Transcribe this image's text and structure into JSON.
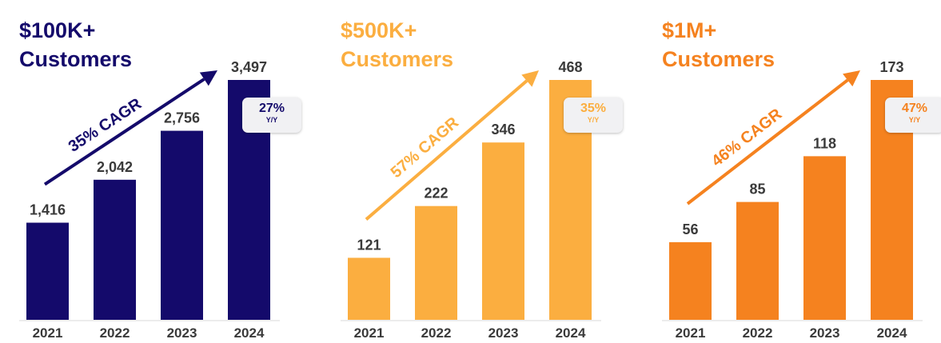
{
  "chart_data": [
    {
      "type": "bar",
      "title": "$100K+",
      "subtitle": "Customers",
      "categories": [
        "2021",
        "2022",
        "2023",
        "2024"
      ],
      "values": [
        1416,
        2042,
        2756,
        3497
      ],
      "value_labels": [
        "1,416",
        "2,042",
        "2,756",
        "3,497"
      ],
      "cagr_label": "35% CAGR",
      "yoy_value": "27%",
      "yoy_unit": "Y/Y",
      "color": "#140a6b",
      "title_color": "#140a6b",
      "yoy_color": "#140a6b"
    },
    {
      "type": "bar",
      "title": "$500K+",
      "subtitle": "Customers",
      "categories": [
        "2021",
        "2022",
        "2023",
        "2024"
      ],
      "values": [
        121,
        222,
        346,
        468
      ],
      "value_labels": [
        "121",
        "222",
        "346",
        "468"
      ],
      "cagr_label": "57% CAGR",
      "yoy_value": "35%",
      "yoy_unit": "Y/Y",
      "color": "#fbae40",
      "title_color": "#fbae40",
      "yoy_color": "#fbae40"
    },
    {
      "type": "bar",
      "title": "$1M+",
      "subtitle": "Customers",
      "categories": [
        "2021",
        "2022",
        "2023",
        "2024"
      ],
      "values": [
        56,
        85,
        118,
        173
      ],
      "value_labels": [
        "56",
        "85",
        "118",
        "173"
      ],
      "cagr_label": "46% CAGR",
      "yoy_value": "47%",
      "yoy_unit": "Y/Y",
      "color": "#f5821f",
      "title_color": "#f5821f",
      "yoy_color": "#f5821f"
    }
  ]
}
